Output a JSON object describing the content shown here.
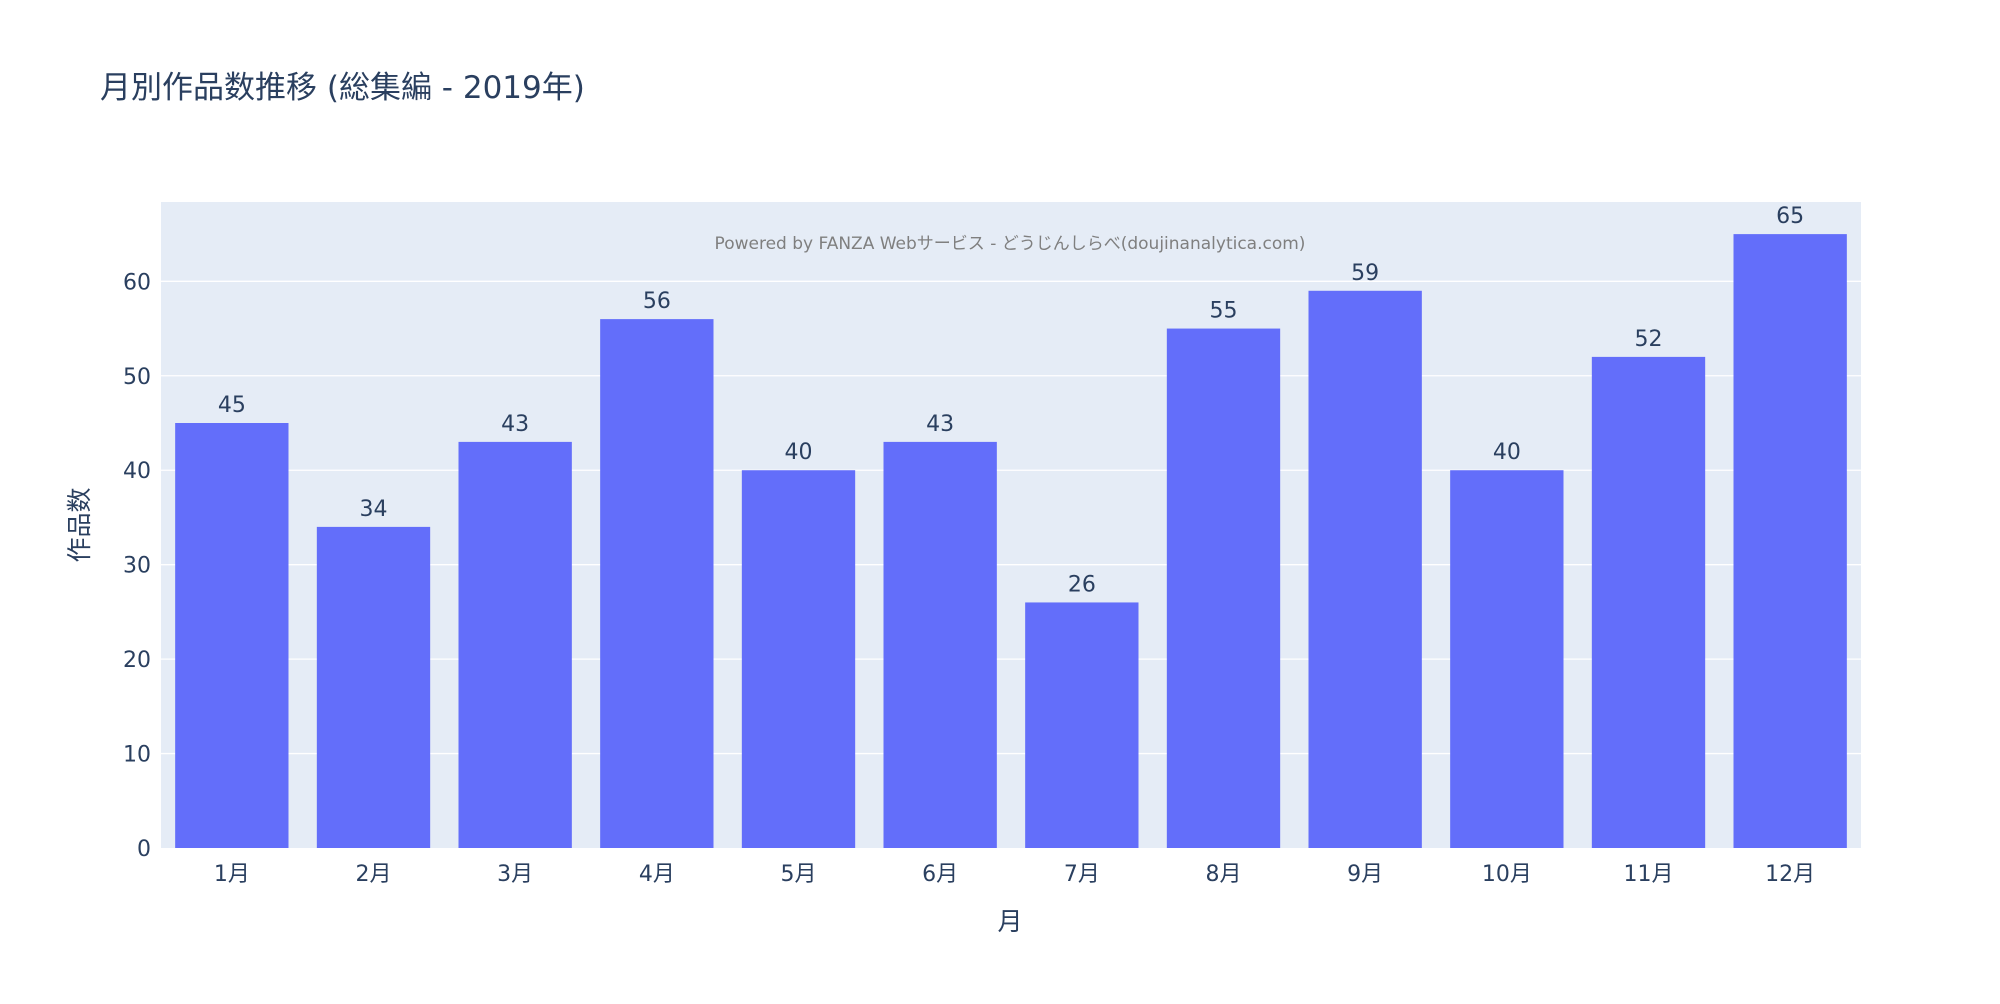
{
  "chart_data": {
    "type": "bar",
    "title": "月別作品数推移 (総集編 - 2019年)",
    "xlabel": "月",
    "ylabel": "作品数",
    "annotation": "Powered by FANZA Webサービス - どうじんしらべ(doujinanalytica.com)",
    "categories": [
      "1月",
      "2月",
      "3月",
      "4月",
      "5月",
      "6月",
      "7月",
      "8月",
      "9月",
      "10月",
      "11月",
      "12月"
    ],
    "values": [
      45,
      34,
      43,
      56,
      40,
      43,
      26,
      55,
      59,
      40,
      52,
      65
    ],
    "ylim": [
      0,
      68.4
    ],
    "yticks": [
      0,
      10,
      20,
      30,
      40,
      50,
      60
    ],
    "grid": true,
    "legend": "none",
    "colors": {
      "bar": "#636efa",
      "plot_background": "#e5ecf6",
      "grid": "#ffffff",
      "text": "#2a3f5f",
      "annotation": "#7f7f7f"
    }
  }
}
